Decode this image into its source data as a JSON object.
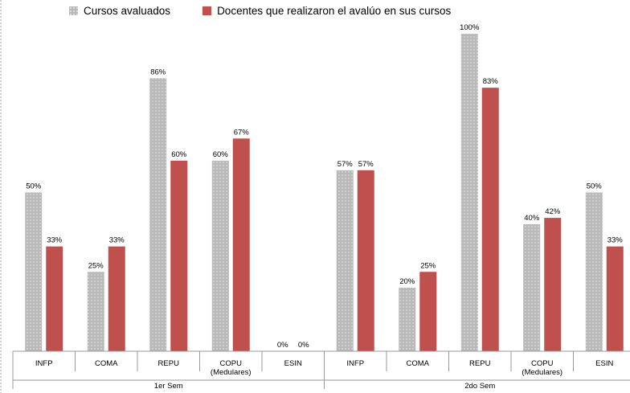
{
  "legend": {
    "series1": "Cursos avaluados",
    "series2": "Docentes que realizaron el avalúo en sus cursos"
  },
  "colors": {
    "series1": "#b9b9b9",
    "series2": "#c0504d"
  },
  "chart_data": {
    "type": "bar",
    "title": "",
    "xlabel": "",
    "ylabel": "",
    "ylim": [
      0,
      100
    ],
    "grid": false,
    "legend_position": "top",
    "groups": [
      {
        "label": "1er Sem",
        "categories": [
          "INFP",
          "COMA",
          "REPU",
          "COPU (Medulares)",
          "ESIN"
        ]
      },
      {
        "label": "2do Sem",
        "categories": [
          "INFP",
          "COMA",
          "REPU",
          "COPU (Medulares)",
          "ESIN"
        ]
      }
    ],
    "categories": [
      "INFP",
      "COMA",
      "REPU",
      "COPU (Medulares)",
      "ESIN",
      "INFP",
      "COMA",
      "REPU",
      "COPU (Medulares)",
      "ESIN"
    ],
    "series": [
      {
        "name": "Cursos avaluados",
        "values": [
          50,
          25,
          86,
          60,
          0,
          57,
          20,
          100,
          40,
          50
        ]
      },
      {
        "name": "Docentes que realizaron el avalúo en sus cursos",
        "values": [
          33,
          33,
          60,
          67,
          0,
          57,
          25,
          83,
          42,
          33
        ]
      }
    ],
    "data_labels": [
      [
        "50%",
        "25%",
        "86%",
        "60%",
        "0%",
        "57%",
        "20%",
        "100%",
        "40%",
        "50%"
      ],
      [
        "33%",
        "33%",
        "60%",
        "67%",
        "0%",
        "57%",
        "25%",
        "83%",
        "42%",
        "33%"
      ]
    ],
    "category_label_lines": [
      [
        "INFP"
      ],
      [
        "COMA"
      ],
      [
        "REPU"
      ],
      [
        "COPU",
        "(Medulares)"
      ],
      [
        "ESIN"
      ],
      [
        "INFP"
      ],
      [
        "COMA"
      ],
      [
        "REPU"
      ],
      [
        "COPU",
        "(Medulares)"
      ],
      [
        "ESIN"
      ]
    ]
  }
}
